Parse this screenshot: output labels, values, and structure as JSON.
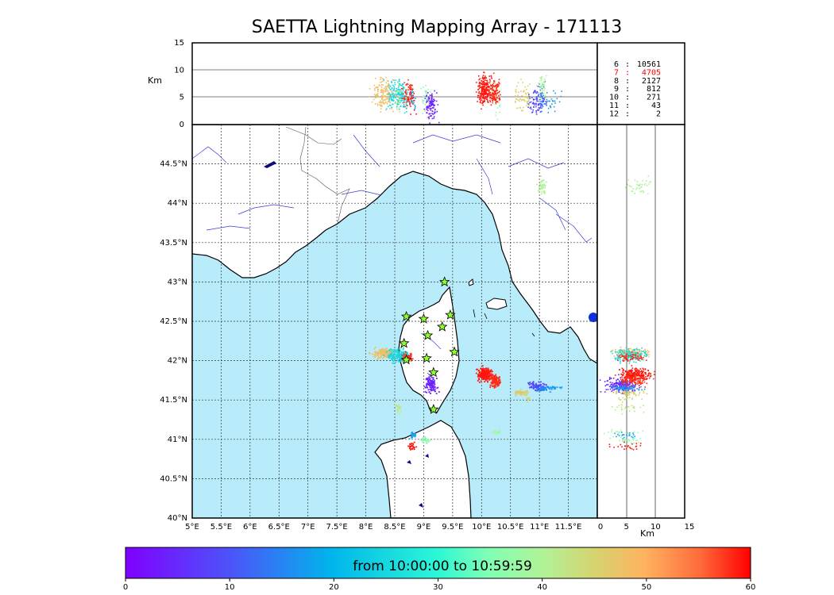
{
  "title": "SAETTA Lightning Mapping Array - 171113",
  "colors": {
    "sea": "#b8ecfb",
    "land": "#ffffff",
    "rivers": "#3a3ad6",
    "borders": "#444444",
    "star_fill": "#8dff2a",
    "highlight": "#ff0000"
  },
  "top_panel": {
    "ylabel": "Km",
    "y_ticks": [
      "15",
      "10",
      "5",
      "0"
    ]
  },
  "side_panel": {
    "xlabel": "Km",
    "x_ticks": [
      "0",
      "5",
      "10",
      "15"
    ]
  },
  "map": {
    "lon_ticks": [
      "5°E",
      "5.5°E",
      "6°E",
      "6.5°E",
      "7°E",
      "7.5°E",
      "8°E",
      "8.5°E",
      "9°E",
      "9.5°E",
      "10°E",
      "10.5°E",
      "11°E",
      "11.5°E"
    ],
    "lat_ticks": [
      "40°N",
      "40.5°N",
      "41°N",
      "41.5°N",
      "42°N",
      "42.5°N",
      "43°N",
      "43.5°N",
      "44°N",
      "44.5°N"
    ],
    "lon_range": [
      5,
      12
    ],
    "lat_range": [
      40,
      45
    ]
  },
  "altitude_counts": [
    {
      "km": "6",
      "sep": ":",
      "count": "10561",
      "highlight": false
    },
    {
      "km": "7",
      "sep": ":",
      "count": "4705",
      "highlight": true
    },
    {
      "km": "8",
      "sep": ":",
      "count": "2127",
      "highlight": false
    },
    {
      "km": "9",
      "sep": ":",
      "count": "812",
      "highlight": false
    },
    {
      "km": "10",
      "sep": ":",
      "count": "271",
      "highlight": false
    },
    {
      "km": "11",
      "sep": ":",
      "count": "43",
      "highlight": false
    },
    {
      "km": "12",
      "sep": ":",
      "count": "2",
      "highlight": false
    }
  ],
  "stations": [
    {
      "lon": 9.36,
      "lat": 43.0
    },
    {
      "lon": 8.7,
      "lat": 42.56
    },
    {
      "lon": 9.0,
      "lat": 42.53
    },
    {
      "lon": 9.46,
      "lat": 42.58
    },
    {
      "lon": 9.32,
      "lat": 42.43
    },
    {
      "lon": 9.07,
      "lat": 42.32
    },
    {
      "lon": 8.66,
      "lat": 42.22
    },
    {
      "lon": 9.53,
      "lat": 42.11
    },
    {
      "lon": 9.05,
      "lat": 42.03
    },
    {
      "lon": 8.7,
      "lat": 42.01
    },
    {
      "lon": 9.17,
      "lat": 41.85
    },
    {
      "lon": 9.17,
      "lat": 41.38
    }
  ],
  "colorbar": {
    "label": "from 10:00:00 to 10:59:59",
    "ticks": [
      "0",
      "10",
      "20",
      "30",
      "40",
      "50",
      "60"
    ],
    "range": [
      0,
      60
    ]
  },
  "clusters": [
    {
      "lon": 8.3,
      "lat": 42.1,
      "slon": 0.1,
      "slat": 0.03,
      "n": 160,
      "t": 48,
      "alt": 5.8
    },
    {
      "lon": 8.55,
      "lat": 42.07,
      "slon": 0.1,
      "slat": 0.04,
      "n": 170,
      "t": 25,
      "alt": 5.5
    },
    {
      "lon": 8.7,
      "lat": 42.05,
      "slon": 0.05,
      "slat": 0.03,
      "n": 60,
      "t": 58,
      "alt": 6.0
    },
    {
      "lon": 9.12,
      "lat": 41.7,
      "slon": 0.06,
      "slat": 0.05,
      "n": 110,
      "t": 4,
      "alt": 3.8
    },
    {
      "lon": 10.05,
      "lat": 41.83,
      "slon": 0.06,
      "slat": 0.04,
      "n": 220,
      "t": 59,
      "alt": 6.5
    },
    {
      "lon": 10.22,
      "lat": 41.75,
      "slon": 0.05,
      "slat": 0.04,
      "n": 130,
      "t": 58,
      "alt": 6.0
    },
    {
      "lon": 10.68,
      "lat": 41.6,
      "slon": 0.06,
      "slat": 0.02,
      "n": 50,
      "t": 46,
      "alt": 5.0
    },
    {
      "lon": 10.8,
      "lat": 41.52,
      "slon": 0.02,
      "slat": 0.02,
      "n": 15,
      "t": 44,
      "alt": 4.5
    },
    {
      "lon": 10.95,
      "lat": 41.68,
      "slon": 0.07,
      "slat": 0.03,
      "n": 80,
      "t": 8,
      "alt": 4.5
    },
    {
      "lon": 11.05,
      "lat": 41.65,
      "slon": 0.05,
      "slat": 0.02,
      "n": 40,
      "t": 15,
      "alt": 5.0
    },
    {
      "lon": 11.25,
      "lat": 41.66,
      "slon": 0.05,
      "slat": 0.01,
      "n": 20,
      "t": 17,
      "alt": 4.5
    },
    {
      "lon": 8.55,
      "lat": 41.4,
      "slon": 0.03,
      "slat": 0.03,
      "n": 25,
      "t": 42,
      "alt": 5.0
    },
    {
      "lon": 10.25,
      "lat": 41.1,
      "slon": 0.05,
      "slat": 0.01,
      "n": 15,
      "t": 38,
      "alt": 4.0
    },
    {
      "lon": 8.8,
      "lat": 41.06,
      "slon": 0.03,
      "slat": 0.02,
      "n": 20,
      "t": 18,
      "alt": 5.0
    },
    {
      "lon": 9.02,
      "lat": 41.0,
      "slon": 0.04,
      "slat": 0.02,
      "n": 25,
      "t": 36,
      "alt": 5.0
    },
    {
      "lon": 8.78,
      "lat": 40.92,
      "slon": 0.03,
      "slat": 0.02,
      "n": 25,
      "t": 59,
      "alt": 5.0
    },
    {
      "lon": 11.05,
      "lat": 44.22,
      "slon": 0.04,
      "slat": 0.05,
      "n": 40,
      "t": 40,
      "alt": 7.0
    }
  ]
}
